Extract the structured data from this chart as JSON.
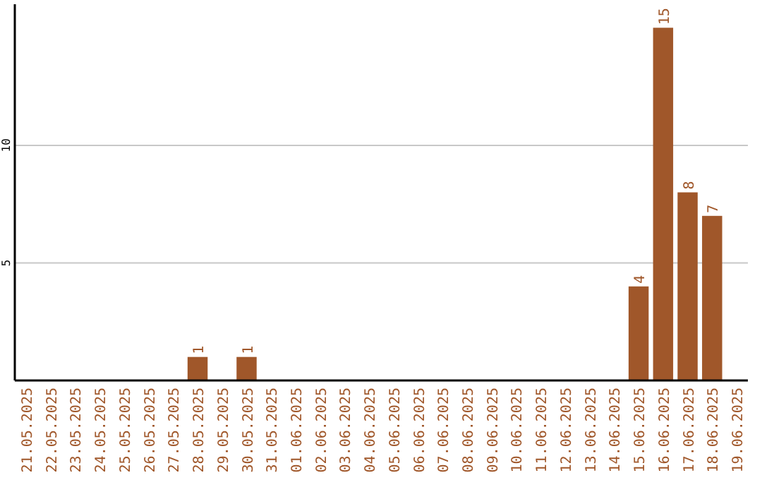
{
  "chart_data": {
    "type": "bar",
    "categories": [
      "21.05.2025",
      "22.05.2025",
      "23.05.2025",
      "24.05.2025",
      "25.05.2025",
      "26.05.2025",
      "27.05.2025",
      "28.05.2025",
      "29.05.2025",
      "30.05.2025",
      "31.05.2025",
      "01.06.2025",
      "02.06.2025",
      "03.06.2025",
      "04.06.2025",
      "05.06.2025",
      "06.06.2025",
      "07.06.2025",
      "08.06.2025",
      "09.06.2025",
      "10.06.2025",
      "11.06.2025",
      "12.06.2025",
      "13.06.2025",
      "14.06.2025",
      "15.06.2025",
      "16.06.2025",
      "17.06.2025",
      "18.06.2025",
      "19.06.2025"
    ],
    "values": [
      0,
      0,
      0,
      0,
      0,
      0,
      0,
      1,
      0,
      1,
      0,
      0,
      0,
      0,
      0,
      0,
      0,
      0,
      0,
      0,
      0,
      0,
      0,
      0,
      0,
      4,
      15,
      8,
      7,
      0
    ],
    "value_labels": [
      null,
      null,
      null,
      null,
      null,
      null,
      null,
      "1",
      null,
      "1",
      null,
      null,
      null,
      null,
      null,
      null,
      null,
      null,
      null,
      null,
      null,
      null,
      null,
      null,
      null,
      "4",
      "15",
      "8",
      "7",
      null
    ],
    "color": "#a0572a",
    "ylim": [
      0,
      16
    ],
    "yticks": [
      5,
      10
    ],
    "grid": "y"
  }
}
